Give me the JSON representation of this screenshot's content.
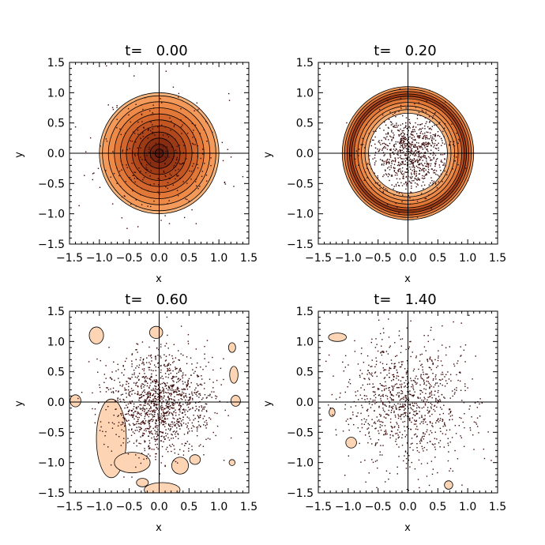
{
  "chart_data": [
    {
      "type": "contour",
      "title": "t=   0.00",
      "xlabel": "x",
      "ylabel": "y",
      "xlim": [
        -1.5,
        1.5
      ],
      "ylim": [
        -1.5,
        1.5
      ],
      "xticks": [
        "−1.5",
        "−1.0",
        "−0.5",
        "0.0",
        "0.5",
        "1.0",
        "1.5"
      ],
      "yticks": [
        "−1.5",
        "−1.0",
        "−0.5",
        "0.0",
        "0.5",
        "1.0",
        "1.5"
      ],
      "center_lines": true,
      "contour_levels": [
        {
          "r": 1.0,
          "color": "#f7b37c"
        },
        {
          "r": 0.95,
          "color": "#f39a5a"
        },
        {
          "r": 0.85,
          "color": "#ee8a47"
        },
        {
          "r": 0.75,
          "color": "#e27838"
        },
        {
          "r": 0.65,
          "color": "#d3662c"
        },
        {
          "r": 0.55,
          "color": "#c25623"
        },
        {
          "r": 0.45,
          "color": "#b0481c"
        },
        {
          "r": 0.35,
          "color": "#9c3a16"
        },
        {
          "r": 0.25,
          "color": "#872e12"
        },
        {
          "r": 0.15,
          "color": "#722410"
        },
        {
          "r": 0.07,
          "color": "#5e1c0e"
        }
      ],
      "particles": {
        "count": 330,
        "sigma": 0.5,
        "seed": 11
      }
    },
    {
      "type": "contour",
      "title": "t=   0.20",
      "xlabel": "x",
      "ylabel": "y",
      "xlim": [
        -1.5,
        1.5
      ],
      "ylim": [
        -1.5,
        1.5
      ],
      "xticks": [
        "−1.5",
        "−1.0",
        "−0.5",
        "0.0",
        "0.5",
        "1.0",
        "1.5"
      ],
      "yticks": [
        "−1.5",
        "−1.0",
        "−0.5",
        "0.0",
        "0.5",
        "1.0",
        "1.5"
      ],
      "center_lines": true,
      "contour_levels": [
        {
          "r": 1.1,
          "color": "#f39a5a"
        },
        {
          "r": 1.06,
          "color": "#e27838"
        },
        {
          "r": 1.02,
          "color": "#c25623"
        },
        {
          "r": 0.98,
          "color": "#9c3a16"
        },
        {
          "r": 0.94,
          "color": "#c25623"
        },
        {
          "r": 0.9,
          "color": "#e27838"
        },
        {
          "r": 0.84,
          "color": "#ee8a47"
        },
        {
          "r": 0.78,
          "color": "#f39a5a"
        },
        {
          "r": 0.72,
          "color": "#f7b37c"
        },
        {
          "r": 0.66,
          "color": "#ffffff"
        }
      ],
      "particles": {
        "count": 900,
        "sigma": 0.33,
        "seed": 23
      }
    },
    {
      "type": "contour",
      "title": "t=   0.60",
      "xlabel": "x",
      "ylabel": "y",
      "xlim": [
        -1.5,
        1.5
      ],
      "ylim": [
        -1.5,
        1.5
      ],
      "xticks": [
        "−1.5",
        "−1.0",
        "−0.5",
        "0.0",
        "0.5",
        "1.0",
        "1.5"
      ],
      "yticks": [
        "−1.5",
        "−1.0",
        "−0.5",
        "0.0",
        "0.5",
        "1.0",
        "1.5"
      ],
      "center_lines": true,
      "blobs": [
        {
          "cx": -1.05,
          "cy": 1.1,
          "rx": 0.12,
          "ry": 0.14
        },
        {
          "cx": -0.05,
          "cy": 1.15,
          "rx": 0.11,
          "ry": 0.1
        },
        {
          "cx": 1.22,
          "cy": 0.9,
          "rx": 0.06,
          "ry": 0.08
        },
        {
          "cx": 1.25,
          "cy": 0.45,
          "rx": 0.07,
          "ry": 0.14
        },
        {
          "cx": -1.4,
          "cy": 0.02,
          "rx": 0.09,
          "ry": 0.1
        },
        {
          "cx": 1.28,
          "cy": 0.02,
          "rx": 0.08,
          "ry": 0.09
        },
        {
          "cx": -0.8,
          "cy": -0.6,
          "rx": 0.25,
          "ry": 0.65
        },
        {
          "cx": -0.45,
          "cy": -1.0,
          "rx": 0.3,
          "ry": 0.17
        },
        {
          "cx": 0.35,
          "cy": -1.05,
          "rx": 0.14,
          "ry": 0.14
        },
        {
          "cx": 0.05,
          "cy": -1.45,
          "rx": 0.3,
          "ry": 0.12
        },
        {
          "cx": -0.28,
          "cy": -1.33,
          "rx": 0.1,
          "ry": 0.07
        },
        {
          "cx": 0.6,
          "cy": -0.95,
          "rx": 0.09,
          "ry": 0.08
        },
        {
          "cx": 1.22,
          "cy": -1.0,
          "rx": 0.05,
          "ry": 0.05
        }
      ],
      "blob_color": "#fdd5b4",
      "particles": {
        "count": 1300,
        "sigma": 0.42,
        "seed": 37
      }
    },
    {
      "type": "contour",
      "title": "t=   1.40",
      "xlabel": "x",
      "ylabel": "y",
      "xlim": [
        -1.5,
        1.5
      ],
      "ylim": [
        -1.5,
        1.5
      ],
      "xticks": [
        "−1.5",
        "−1.0",
        "−0.5",
        "0.0",
        "0.5",
        "1.0",
        "1.5"
      ],
      "yticks": [
        "−1.5",
        "−1.0",
        "−0.5",
        "0.0",
        "0.5",
        "1.0",
        "1.5"
      ],
      "center_lines": true,
      "blobs": [
        {
          "cx": -1.18,
          "cy": 1.07,
          "rx": 0.15,
          "ry": 0.07
        },
        {
          "cx": -1.27,
          "cy": -0.17,
          "rx": 0.05,
          "ry": 0.07
        },
        {
          "cx": -0.95,
          "cy": -0.67,
          "rx": 0.09,
          "ry": 0.09
        },
        {
          "cx": 0.68,
          "cy": -1.37,
          "rx": 0.07,
          "ry": 0.07
        }
      ],
      "blob_color": "#fdd5b4",
      "particles": {
        "count": 1000,
        "sigma": 0.55,
        "seed": 53
      }
    }
  ]
}
